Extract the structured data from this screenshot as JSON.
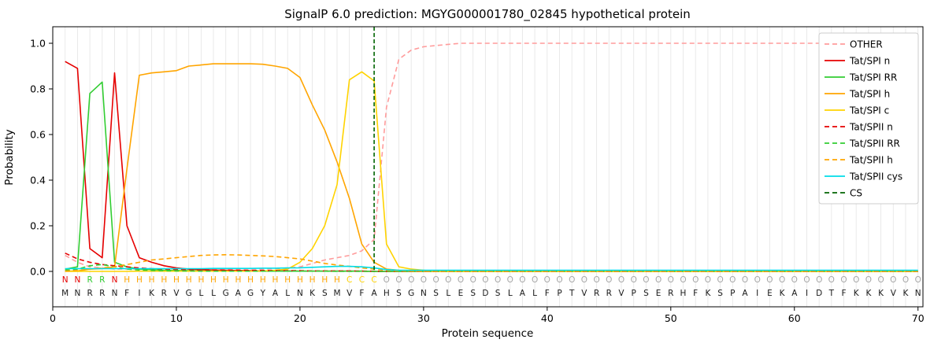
{
  "chart_data": {
    "type": "line",
    "title": "SignalP 6.0 prediction: MGYG000001780_02845 hypothetical protein",
    "xlabel": "Protein sequence",
    "ylabel": "Probability",
    "xlim": [
      0,
      70.4
    ],
    "ylim": [
      -0.155,
      1.072
    ],
    "xticks": [
      0,
      10,
      20,
      30,
      40,
      50,
      60,
      70
    ],
    "yticks": [
      "0.0",
      "0.2",
      "0.4",
      "0.6",
      "0.8",
      "1.0"
    ],
    "grid": "vertical-minor-only",
    "legend_position": "upper right",
    "colors": {
      "grid": "#e7e7e7",
      "axis": "#000000",
      "sequence_text": "#1a1a1a"
    },
    "cs": {
      "label": "CS",
      "color": "#006400",
      "position": 26
    },
    "sequence": "MNRRNFIKRVGLLGAGYALNKSMVFAHSGNSLESDSLALFPTVRRVPSERHFKSPAIEKAIDTFKKKVKN",
    "region_segments": [
      {
        "letter": "N",
        "count": 2
      },
      {
        "letter": "R",
        "count": 2
      },
      {
        "letter": "N",
        "count": 1
      },
      {
        "letter": "H",
        "count": 18
      },
      {
        "letter": "C",
        "count": 3
      },
      {
        "letter": "O",
        "count": 44
      }
    ],
    "region_colors": {
      "N": "#e60000",
      "R": "#32cd32",
      "H": "#ffa500",
      "C": "#ffd300",
      "O": "#a6a6a6"
    },
    "series": [
      {
        "name": "OTHER",
        "color": "#ff9c9c",
        "dash": true,
        "values": [
          0.07,
          0.04,
          0.02,
          0.015,
          0.01,
          0.01,
          0.01,
          0.01,
          0.01,
          0.01,
          0.01,
          0.01,
          0.01,
          0.01,
          0.01,
          0.01,
          0.01,
          0.012,
          0.015,
          0.02,
          0.035,
          0.05,
          0.06,
          0.07,
          0.09,
          0.14,
          0.72,
          0.93,
          0.97,
          0.985,
          0.99,
          0.995,
          1.0,
          1.0,
          1.0,
          1.0,
          1.0,
          1.0,
          1.0,
          1.0,
          1.0,
          1.0,
          1.0,
          1.0,
          1.0,
          1.0,
          1.0,
          1.0,
          1.0,
          1.0,
          1.0,
          1.0,
          1.0,
          1.0,
          1.0,
          1.0,
          1.0,
          1.0,
          1.0,
          1.0,
          1.0,
          1.0,
          1.0,
          1.0,
          1.0,
          1.0,
          1.0,
          1.0,
          1.0,
          1.0
        ]
      },
      {
        "name": "Tat/SPI n",
        "color": "#e60000",
        "dash": false,
        "values": [
          0.92,
          0.89,
          0.1,
          0.06,
          0.87,
          0.2,
          0.06,
          0.04,
          0.025,
          0.015,
          0.01,
          0.008,
          0.006,
          0.005,
          0.004,
          0.003,
          0.002,
          0.002,
          0.002,
          0.001,
          0.001,
          0.001,
          0.001,
          0.001,
          0.001,
          0,
          0,
          0,
          0,
          0,
          0,
          0,
          0,
          0,
          0,
          0,
          0,
          0,
          0,
          0,
          0,
          0,
          0,
          0,
          0,
          0,
          0,
          0,
          0,
          0,
          0,
          0,
          0,
          0,
          0,
          0,
          0,
          0,
          0,
          0,
          0,
          0,
          0,
          0,
          0,
          0,
          0,
          0,
          0,
          0
        ]
      },
      {
        "name": "Tat/SPI RR",
        "color": "#32cd32",
        "dash": false,
        "values": [
          0.01,
          0.02,
          0.78,
          0.83,
          0.04,
          0.02,
          0.01,
          0.008,
          0.005,
          0.004,
          0.003,
          0.002,
          0.002,
          0.001,
          0.001,
          0.001,
          0.001,
          0.001,
          0.001,
          0.001,
          0.001,
          0.001,
          0.001,
          0.001,
          0.001,
          0,
          0,
          0,
          0,
          0,
          0,
          0,
          0,
          0,
          0,
          0,
          0,
          0,
          0,
          0,
          0,
          0,
          0,
          0,
          0,
          0,
          0,
          0,
          0,
          0,
          0,
          0,
          0,
          0,
          0,
          0,
          0,
          0,
          0,
          0,
          0,
          0,
          0,
          0,
          0,
          0,
          0,
          0,
          0,
          0
        ]
      },
      {
        "name": "Tat/SPI h",
        "color": "#ffa500",
        "dash": false,
        "values": [
          0.001,
          0.002,
          0.01,
          0.012,
          0.02,
          0.45,
          0.86,
          0.87,
          0.875,
          0.88,
          0.9,
          0.905,
          0.91,
          0.91,
          0.91,
          0.91,
          0.908,
          0.9,
          0.89,
          0.85,
          0.73,
          0.62,
          0.48,
          0.32,
          0.12,
          0.04,
          0.01,
          0.005,
          0.002,
          0.001,
          0,
          0,
          0,
          0,
          0,
          0,
          0,
          0,
          0,
          0,
          0,
          0,
          0,
          0,
          0,
          0,
          0,
          0,
          0,
          0,
          0,
          0,
          0,
          0,
          0,
          0,
          0,
          0,
          0,
          0,
          0,
          0,
          0,
          0,
          0,
          0,
          0,
          0,
          0,
          0
        ]
      },
      {
        "name": "Tat/SPI c",
        "color": "#ffd300",
        "dash": false,
        "values": [
          0,
          0,
          0,
          0,
          0,
          0,
          0.001,
          0.001,
          0.001,
          0.001,
          0.001,
          0.001,
          0.001,
          0.001,
          0.001,
          0.001,
          0.002,
          0.005,
          0.01,
          0.04,
          0.1,
          0.2,
          0.38,
          0.84,
          0.875,
          0.835,
          0.12,
          0.02,
          0.01,
          0.005,
          0,
          0,
          0,
          0,
          0,
          0,
          0,
          0,
          0,
          0,
          0,
          0,
          0,
          0,
          0,
          0,
          0,
          0,
          0,
          0,
          0,
          0,
          0,
          0,
          0,
          0,
          0,
          0,
          0,
          0,
          0,
          0,
          0,
          0,
          0,
          0,
          0,
          0,
          0,
          0
        ]
      },
      {
        "name": "Tat/SPII n",
        "color": "#e60000",
        "dash": true,
        "values": [
          0.08,
          0.055,
          0.04,
          0.03,
          0.025,
          0.02,
          0.015,
          0.012,
          0.01,
          0.009,
          0.008,
          0.007,
          0.006,
          0.005,
          0.005,
          0.004,
          0.004,
          0.003,
          0.003,
          0.003,
          0.002,
          0.002,
          0.002,
          0.002,
          0.001,
          0.001,
          0,
          0,
          0,
          0,
          0,
          0,
          0,
          0,
          0,
          0,
          0,
          0,
          0,
          0,
          0,
          0,
          0,
          0,
          0,
          0,
          0,
          0,
          0,
          0,
          0,
          0,
          0,
          0,
          0,
          0,
          0,
          0,
          0,
          0,
          0,
          0,
          0,
          0,
          0,
          0,
          0,
          0,
          0,
          0
        ]
      },
      {
        "name": "Tat/SPII RR",
        "color": "#32cd32",
        "dash": true,
        "values": [
          0.005,
          0.01,
          0.025,
          0.03,
          0.02,
          0.01,
          0.006,
          0.004,
          0.003,
          0.002,
          0.002,
          0.001,
          0.001,
          0.001,
          0.001,
          0.001,
          0.001,
          0.001,
          0.001,
          0.001,
          0.001,
          0.001,
          0,
          0,
          0,
          0,
          0,
          0,
          0,
          0,
          0,
          0,
          0,
          0,
          0,
          0,
          0,
          0,
          0,
          0,
          0,
          0,
          0,
          0,
          0,
          0,
          0,
          0,
          0,
          0,
          0,
          0,
          0,
          0,
          0,
          0,
          0,
          0,
          0,
          0,
          0,
          0,
          0,
          0,
          0,
          0,
          0,
          0,
          0,
          0
        ]
      },
      {
        "name": "Tat/SPII h",
        "color": "#ffa500",
        "dash": true,
        "values": [
          0.001,
          0.004,
          0.01,
          0.015,
          0.02,
          0.03,
          0.04,
          0.05,
          0.055,
          0.06,
          0.065,
          0.07,
          0.072,
          0.073,
          0.072,
          0.07,
          0.068,
          0.065,
          0.06,
          0.055,
          0.045,
          0.035,
          0.028,
          0.022,
          0.015,
          0.01,
          0.005,
          0.002,
          0.001,
          0,
          0,
          0,
          0,
          0,
          0,
          0,
          0,
          0,
          0,
          0,
          0,
          0,
          0,
          0,
          0,
          0,
          0,
          0,
          0,
          0,
          0,
          0,
          0,
          0,
          0,
          0,
          0,
          0,
          0,
          0,
          0,
          0,
          0,
          0,
          0,
          0,
          0,
          0,
          0,
          0
        ]
      },
      {
        "name": "Tat/SPII cys",
        "color": "#00dde8",
        "dash": false,
        "values": [
          0.012,
          0.012,
          0.012,
          0.012,
          0.012,
          0.012,
          0.012,
          0.012,
          0.012,
          0.012,
          0.012,
          0.012,
          0.013,
          0.013,
          0.013,
          0.013,
          0.014,
          0.014,
          0.015,
          0.016,
          0.018,
          0.02,
          0.022,
          0.022,
          0.02,
          0.015,
          0.008,
          0.005,
          0.005,
          0.005,
          0.005,
          0.005,
          0.005,
          0.005,
          0.005,
          0.005,
          0.005,
          0.005,
          0.005,
          0.005,
          0.005,
          0.005,
          0.005,
          0.005,
          0.005,
          0.005,
          0.005,
          0.005,
          0.005,
          0.005,
          0.005,
          0.005,
          0.005,
          0.005,
          0.005,
          0.005,
          0.005,
          0.005,
          0.005,
          0.005,
          0.005,
          0.005,
          0.005,
          0.005,
          0.005,
          0.005,
          0.005,
          0.005,
          0.005,
          0.005
        ]
      }
    ]
  }
}
